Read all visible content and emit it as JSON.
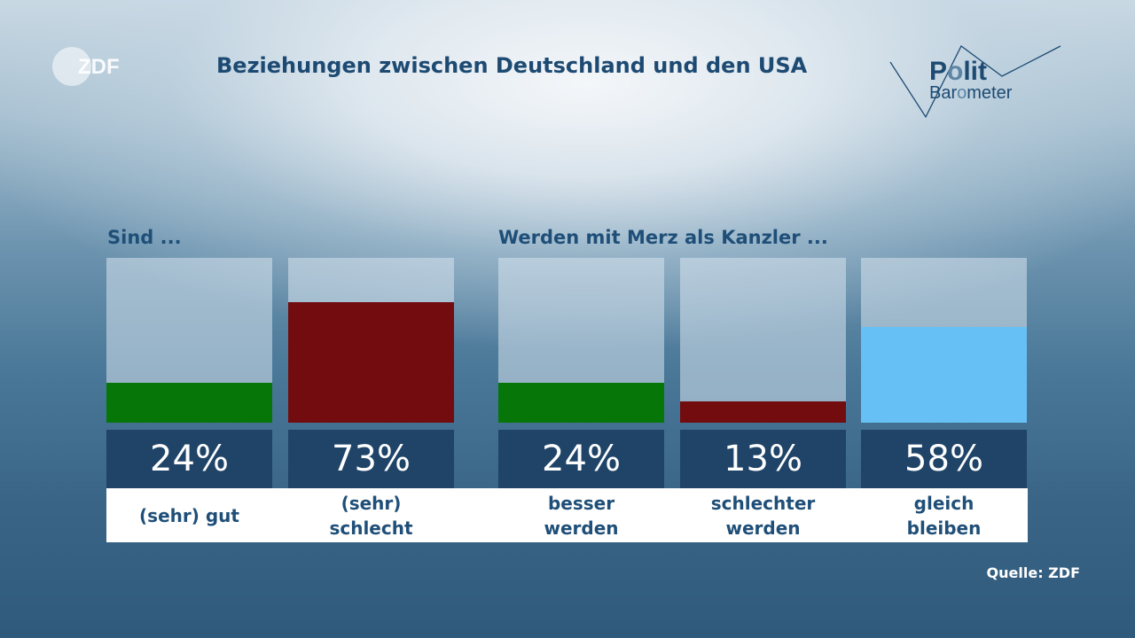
{
  "header": {
    "broadcaster_logo": "ZDF",
    "title": "Beziehungen zwischen Deutschland und den USA",
    "program_logo": {
      "line1_a": "P",
      "line1_b": "o",
      "line1_c": "lit",
      "line2_a": "Bar",
      "line2_b": "o",
      "line2_c": "meter"
    }
  },
  "chart_data": {
    "type": "bar",
    "unit": "%",
    "ylim": [
      0,
      100
    ],
    "groups": [
      {
        "label": "Sind ...",
        "categories": [
          "(sehr) gut",
          "(sehr) schlecht"
        ],
        "values": [
          24,
          73
        ],
        "value_labels": [
          "24%",
          "73%"
        ]
      },
      {
        "label": "Werden mit Merz als Kanzler ...",
        "categories": [
          "besser werden",
          "schlechter werden",
          "gleich bleiben"
        ],
        "values": [
          24,
          13,
          58
        ],
        "value_labels": [
          "24%",
          "13%",
          "58%"
        ]
      }
    ],
    "bars": [
      {
        "category": "(sehr) gut",
        "value": 24,
        "value_label": "24%",
        "color": "#057607"
      },
      {
        "category": "(sehr) schlecht",
        "value": 73,
        "value_label": "73%",
        "color": "#720c0e"
      },
      {
        "category": "besser werden",
        "value": 24,
        "value_label": "24%",
        "color": "#057607"
      },
      {
        "category": "schlechter werden",
        "value": 13,
        "value_label": "13%",
        "color": "#720c0e"
      },
      {
        "category": "gleich bleiben",
        "value": 58,
        "value_label": "58%",
        "color": "#67c0f5"
      }
    ],
    "grid": false,
    "legend": "none"
  },
  "category_labels": [
    {
      "line1": "(sehr) gut",
      "line2": ""
    },
    {
      "line1": "(sehr)",
      "line2": "schlecht"
    },
    {
      "line1": "besser",
      "line2": "werden"
    },
    {
      "line1": "schlechter",
      "line2": "werden"
    },
    {
      "line1": "gleich",
      "line2": "bleiben"
    }
  ],
  "footer": {
    "source": "Quelle: ZDF"
  },
  "colors": {
    "title": "#1d4a72",
    "value_box": "#1f4468",
    "positive": "#057607",
    "negative": "#720c0e",
    "neutral": "#67c0f5"
  }
}
